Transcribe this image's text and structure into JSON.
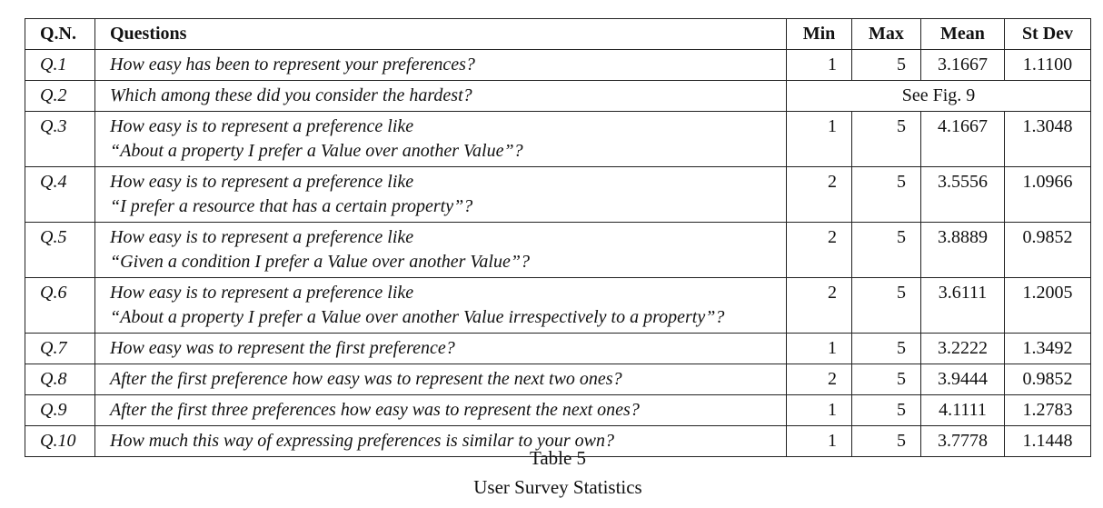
{
  "headers": {
    "qn": "Q.N.",
    "questions": "Questions",
    "min": "Min",
    "max": "Max",
    "mean": "Mean",
    "stdev": "St Dev"
  },
  "rows": [
    {
      "qn": "Q.1",
      "line1": "How easy has been to represent your preferences?",
      "line2": "",
      "min": "1",
      "max": "5",
      "mean": "3.1667",
      "stdev": "1.1100"
    },
    {
      "qn": "Q.2",
      "line1": "Which among these did you consider the hardest?",
      "merged": "See Fig. 9"
    },
    {
      "qn": "Q.3",
      "line1": "How easy is to represent a preference like",
      "line2": "“About a property I prefer a Value over another Value”?",
      "min": "1",
      "max": "5",
      "mean": "4.1667",
      "stdev": "1.3048"
    },
    {
      "qn": "Q.4",
      "line1": "How easy is to represent a preference like",
      "line2": "“I prefer a resource that has a certain property”?",
      "min": "2",
      "max": "5",
      "mean": "3.5556",
      "stdev": "1.0966"
    },
    {
      "qn": "Q.5",
      "line1": "How easy is to represent a preference like",
      "line2": "“Given a condition I prefer a Value over another Value”?",
      "min": "2",
      "max": "5",
      "mean": "3.8889",
      "stdev": "0.9852"
    },
    {
      "qn": "Q.6",
      "line1": "How easy is to represent a preference like",
      "line2": "“About a property I prefer a Value over another Value irrespectively to a property”?",
      "min": "2",
      "max": "5",
      "mean": "3.6111",
      "stdev": "1.2005"
    },
    {
      "qn": "Q.7",
      "line1": "How easy was to represent the first preference?",
      "line2": "",
      "min": "1",
      "max": "5",
      "mean": "3.2222",
      "stdev": "1.3492"
    },
    {
      "qn": "Q.8",
      "line1": "After the first preference how easy was to represent the next two ones?",
      "line2": "",
      "min": "2",
      "max": "5",
      "mean": "3.9444",
      "stdev": "0.9852"
    },
    {
      "qn": "Q.9",
      "line1": "After the first three preferences how easy was to represent the next ones?",
      "line2": "",
      "min": "1",
      "max": "5",
      "mean": "4.1111",
      "stdev": "1.2783"
    },
    {
      "qn": "Q.10",
      "line1": "How much this way of expressing preferences is similar to your own?",
      "line2": "",
      "min": "1",
      "max": "5",
      "mean": "3.7778",
      "stdev": "1.1448"
    }
  ],
  "caption": {
    "label": "Table 5",
    "title": "User Survey Statistics"
  }
}
